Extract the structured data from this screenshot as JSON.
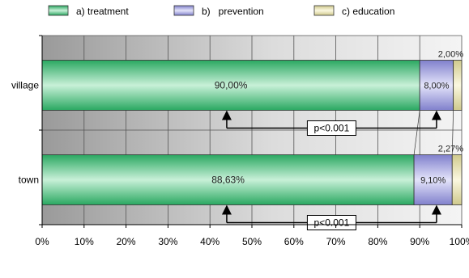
{
  "chart_data": {
    "type": "bar",
    "orientation": "horizontal",
    "stacked": true,
    "percent_stacked": true,
    "categories": [
      "village",
      "town"
    ],
    "series": [
      {
        "name": "a) treatment",
        "values": [
          90.0,
          88.63
        ],
        "labels": [
          "90,00%",
          "88,63%"
        ],
        "color": "#2fb86c"
      },
      {
        "name": "b)   prevention",
        "values": [
          8.0,
          9.1
        ],
        "labels": [
          "8,00%",
          "9,10%"
        ],
        "color": "#9999dd"
      },
      {
        "name": "c) education",
        "values": [
          2.0,
          2.27
        ],
        "labels": [
          "2,00%",
          "2,27%"
        ],
        "color": "#e6e0a8"
      }
    ],
    "xlim": [
      0,
      100
    ],
    "x_ticks": [
      "0%",
      "10%",
      "20%",
      "30%",
      "40%",
      "50%",
      "60%",
      "70%",
      "80%",
      "90%",
      "100%"
    ],
    "legend_position": "top",
    "grid": true,
    "annotations": [
      {
        "text": "p<0.001",
        "between": "village: treatment vs prevention"
      },
      {
        "text": "p<0.001",
        "between": "town: treatment vs prevention"
      }
    ]
  }
}
